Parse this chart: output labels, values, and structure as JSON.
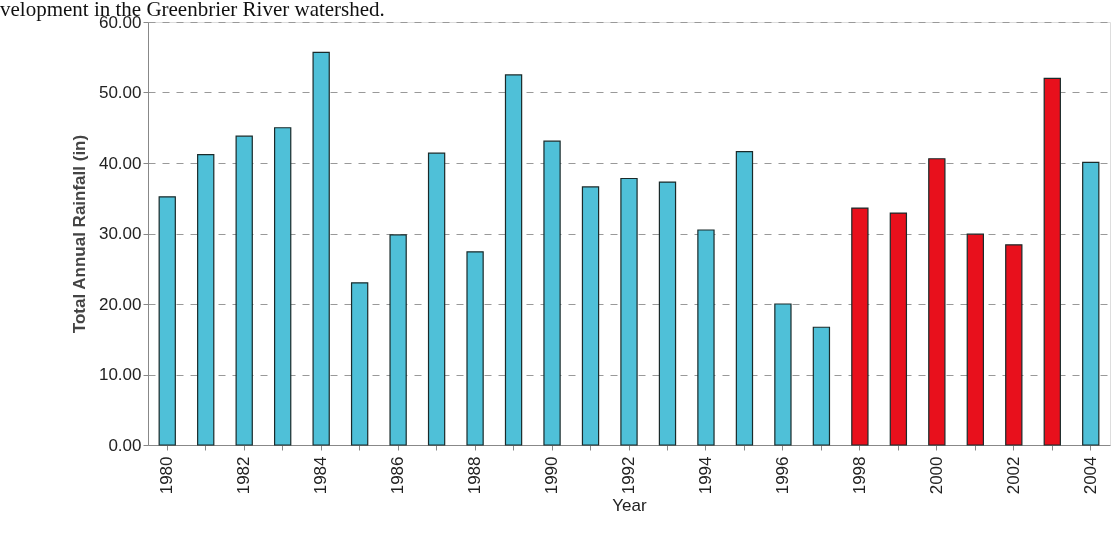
{
  "chart_data": {
    "type": "bar",
    "annotations": [
      "velopment in the Greenbrier River watershed."
    ],
    "xlabel": "Year",
    "ylabel": "Total Annual Rainfall (in)",
    "categories": [
      "1980",
      null,
      "1982",
      null,
      "1984",
      null,
      "1986",
      null,
      "1988",
      null,
      "1990",
      null,
      "1992",
      null,
      "1994",
      null,
      "1996",
      null,
      "1998",
      null,
      "2000",
      null,
      "2002",
      null,
      "2004"
    ],
    "values": [
      35.2,
      41.2,
      43.8,
      45.0,
      55.7,
      23.0,
      29.8,
      41.4,
      27.4,
      52.5,
      43.1,
      36.6,
      37.8,
      37.3,
      30.5,
      41.6,
      20.0,
      16.7,
      33.6,
      32.9,
      40.6,
      29.9,
      28.4,
      52.0,
      40.1
    ],
    "colors": [
      "#4fc0d8",
      "#4fc0d8",
      "#4fc0d8",
      "#4fc0d8",
      "#4fc0d8",
      "#4fc0d8",
      "#4fc0d8",
      "#4fc0d8",
      "#4fc0d8",
      "#4fc0d8",
      "#4fc0d8",
      "#4fc0d8",
      "#4fc0d8",
      "#4fc0d8",
      "#4fc0d8",
      "#4fc0d8",
      "#4fc0d8",
      "#4fc0d8",
      "#e8101c",
      "#e8101c",
      "#e8101c",
      "#e8101c",
      "#e8101c",
      "#e8101c",
      "#4fc0d8"
    ],
    "ylim": [
      0,
      60
    ],
    "yticks": [
      {
        "value": 0,
        "label": "0.00"
      },
      {
        "value": 10,
        "label": "10.00"
      },
      {
        "value": 20,
        "label": "20.00"
      },
      {
        "value": 30,
        "label": "30.00"
      },
      {
        "value": 40,
        "label": "40.00"
      },
      {
        "value": 50,
        "label": "50.00"
      },
      {
        "value": 60,
        "label": "60.00"
      }
    ],
    "grid": "y"
  }
}
